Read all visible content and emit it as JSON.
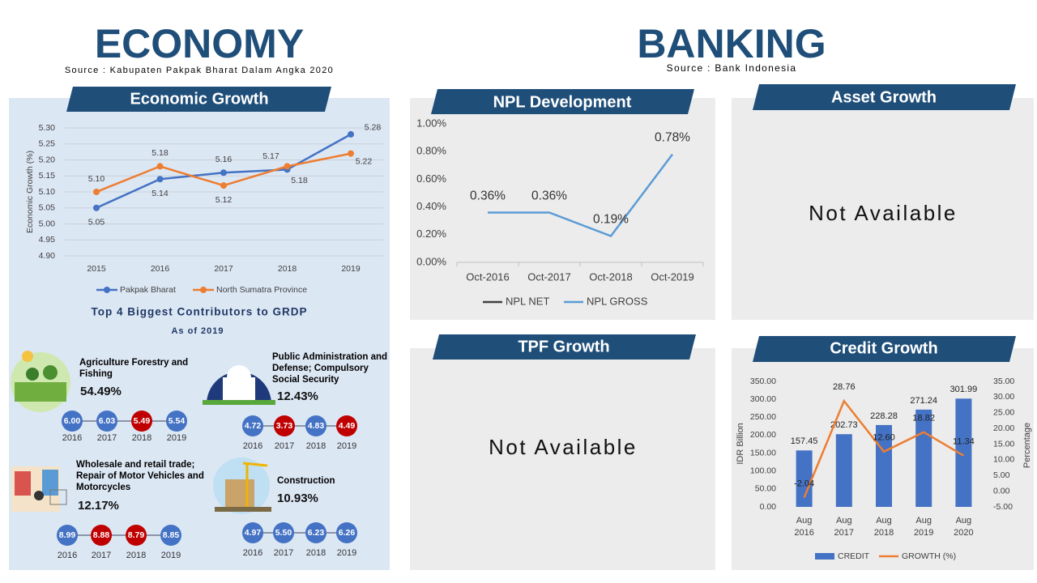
{
  "economy": {
    "title": "ECONOMY",
    "source": "Source : Kabupaten Pakpak Bharat Dalam Angka 2020"
  },
  "banking": {
    "title": "BANKING",
    "source": "Source : Bank Indonesia"
  },
  "chart_data": [
    {
      "type": "line",
      "title": "Economic Growth",
      "ylabel": "Economic Growth (%)",
      "categories": [
        "2015",
        "2016",
        "2017",
        "2018",
        "2019"
      ],
      "ylim": [
        4.9,
        5.3
      ],
      "yticks": [
        {
          "value": 4.9,
          "label": "4.90"
        },
        {
          "value": 4.95,
          "label": "4.95"
        },
        {
          "value": 5.0,
          "label": "5.00"
        },
        {
          "value": 5.05,
          "label": "5.05"
        },
        {
          "value": 5.1,
          "label": "5.10"
        },
        {
          "value": 5.15,
          "label": "5.15"
        },
        {
          "value": 5.2,
          "label": "5.20"
        },
        {
          "value": 5.25,
          "label": "5.25"
        },
        {
          "value": 5.3,
          "label": "5.30"
        }
      ],
      "grid": true,
      "series": [
        {
          "name": "Pakpak Bharat",
          "color": "#4472c4",
          "values": [
            5.05,
            5.14,
            5.16,
            5.17,
            5.28
          ],
          "value_labels": [
            "5.05",
            "5.14",
            "5.16",
            "5.17",
            "5.28"
          ]
        },
        {
          "name": "North Sumatra Province",
          "color": "#ed7d31",
          "values": [
            5.1,
            5.18,
            5.12,
            5.18,
            5.22
          ],
          "value_labels": [
            "5.10",
            "5.18",
            "5.12",
            "5.18",
            "5.22"
          ]
        }
      ]
    },
    {
      "type": "line",
      "title": "NPL Development",
      "categories": [
        "Oct-2016",
        "Oct-2017",
        "Oct-2018",
        "Oct-2019"
      ],
      "ylim": [
        0,
        1
      ],
      "yticks": [
        {
          "value": 0,
          "label": "0.00%"
        },
        {
          "value": 0.2,
          "label": "0.20%"
        },
        {
          "value": 0.4,
          "label": "0.40%"
        },
        {
          "value": 0.6,
          "label": "0.60%"
        },
        {
          "value": 0.8,
          "label": "0.80%"
        },
        {
          "value": 1,
          "label": "1.00%"
        }
      ],
      "series": [
        {
          "name": "NPL NET",
          "color": "#404040",
          "values": [
            null,
            null,
            null,
            null
          ]
        },
        {
          "name": "NPL GROSS",
          "color": "#5b9bd5",
          "values": [
            0.36,
            0.36,
            0.19,
            0.78
          ],
          "value_labels": [
            "0.36%",
            "0.36%",
            "0.19%",
            "0.78%"
          ]
        }
      ]
    },
    {
      "type": "bar-line",
      "title": "Credit Growth",
      "ylabel": "IDR Billion",
      "y2label": "Percentage",
      "categories": [
        "Aug 2016",
        "Aug 2017",
        "Aug 2018",
        "Aug 2019",
        "Aug 2020"
      ],
      "ylim": [
        0,
        350
      ],
      "yticks": [
        {
          "value": 0,
          "label": "0.00"
        },
        {
          "value": 50,
          "label": "50.00"
        },
        {
          "value": 100,
          "label": "100.00"
        },
        {
          "value": 150,
          "label": "150.00"
        },
        {
          "value": 200,
          "label": "200.00"
        },
        {
          "value": 250,
          "label": "250.00"
        },
        {
          "value": 300,
          "label": "300.00"
        },
        {
          "value": 350,
          "label": "350.00"
        }
      ],
      "y2lim": [
        -5,
        35
      ],
      "y2ticks": [
        {
          "value": -5,
          "label": "-5.00"
        },
        {
          "value": 0,
          "label": "0.00"
        },
        {
          "value": 5,
          "label": "5.00"
        },
        {
          "value": 10,
          "label": "10.00"
        },
        {
          "value": 15,
          "label": "15.00"
        },
        {
          "value": 20,
          "label": "20.00"
        },
        {
          "value": 25,
          "label": "25.00"
        },
        {
          "value": 30,
          "label": "30.00"
        },
        {
          "value": 35,
          "label": "35.00"
        }
      ],
      "series": [
        {
          "name": "CREDIT",
          "color": "#4472c4",
          "values": [
            157.45,
            202.73,
            228.28,
            271.24,
            301.99
          ]
        },
        {
          "name": "GROWTH (%)",
          "color": "#ed7d31",
          "axis": "y2",
          "values": [
            -2.04,
            28.76,
            12.6,
            18.82,
            11.34
          ],
          "value_labels": [
            "-2.04",
            "28.76",
            "12.60",
            "18.82",
            "11.34"
          ]
        }
      ]
    }
  ],
  "panels": [
    {
      "title": "Asset Growth",
      "message": "Not Available"
    },
    {
      "title": "TPF Growth",
      "message": "Not Available"
    }
  ],
  "contributors": {
    "title": "Top 4 Biggest Contributors to GRDP",
    "subtitle": "As of 2019",
    "items": [
      {
        "name": "Agriculture Forestry and Fishing",
        "share": "54.49%",
        "years": [
          "2016",
          "2017",
          "2018",
          "2019"
        ],
        "values": [
          6.0,
          6.03,
          5.49,
          5.54
        ],
        "value_labels": [
          "6.00",
          "6.03",
          "5.49",
          "5.54"
        ],
        "colors": [
          "#4472c4",
          "#4472c4",
          "#c00000",
          "#4472c4"
        ]
      },
      {
        "name": "Public Administration and Defense; Compulsory Social Security",
        "share": "12.43%",
        "years": [
          "2016",
          "2017",
          "2018",
          "2019"
        ],
        "values": [
          4.72,
          3.73,
          4.83,
          4.49
        ],
        "value_labels": [
          "4.72",
          "3.73",
          "4.83",
          "4.49"
        ],
        "colors": [
          "#4472c4",
          "#c00000",
          "#4472c4",
          "#c00000"
        ]
      },
      {
        "name": "Wholesale and retail trade; Repair of Motor Vehicles and Motorcycles",
        "share": "12.17%",
        "years": [
          "2016",
          "2017",
          "2018",
          "2019"
        ],
        "values": [
          8.99,
          8.88,
          8.79,
          8.85
        ],
        "value_labels": [
          "8.99",
          "8.88",
          "8.79",
          "8.85"
        ],
        "colors": [
          "#4472c4",
          "#c00000",
          "#c00000",
          "#4472c4"
        ]
      },
      {
        "name": "Construction",
        "share": "10.93%",
        "years": [
          "2016",
          "2017",
          "2018",
          "2019"
        ],
        "values": [
          4.97,
          5.5,
          6.23,
          6.26
        ],
        "value_labels": [
          "4.97",
          "5.50",
          "6.23",
          "6.26"
        ],
        "colors": [
          "#4472c4",
          "#4472c4",
          "#4472c4",
          "#4472c4"
        ]
      }
    ]
  }
}
